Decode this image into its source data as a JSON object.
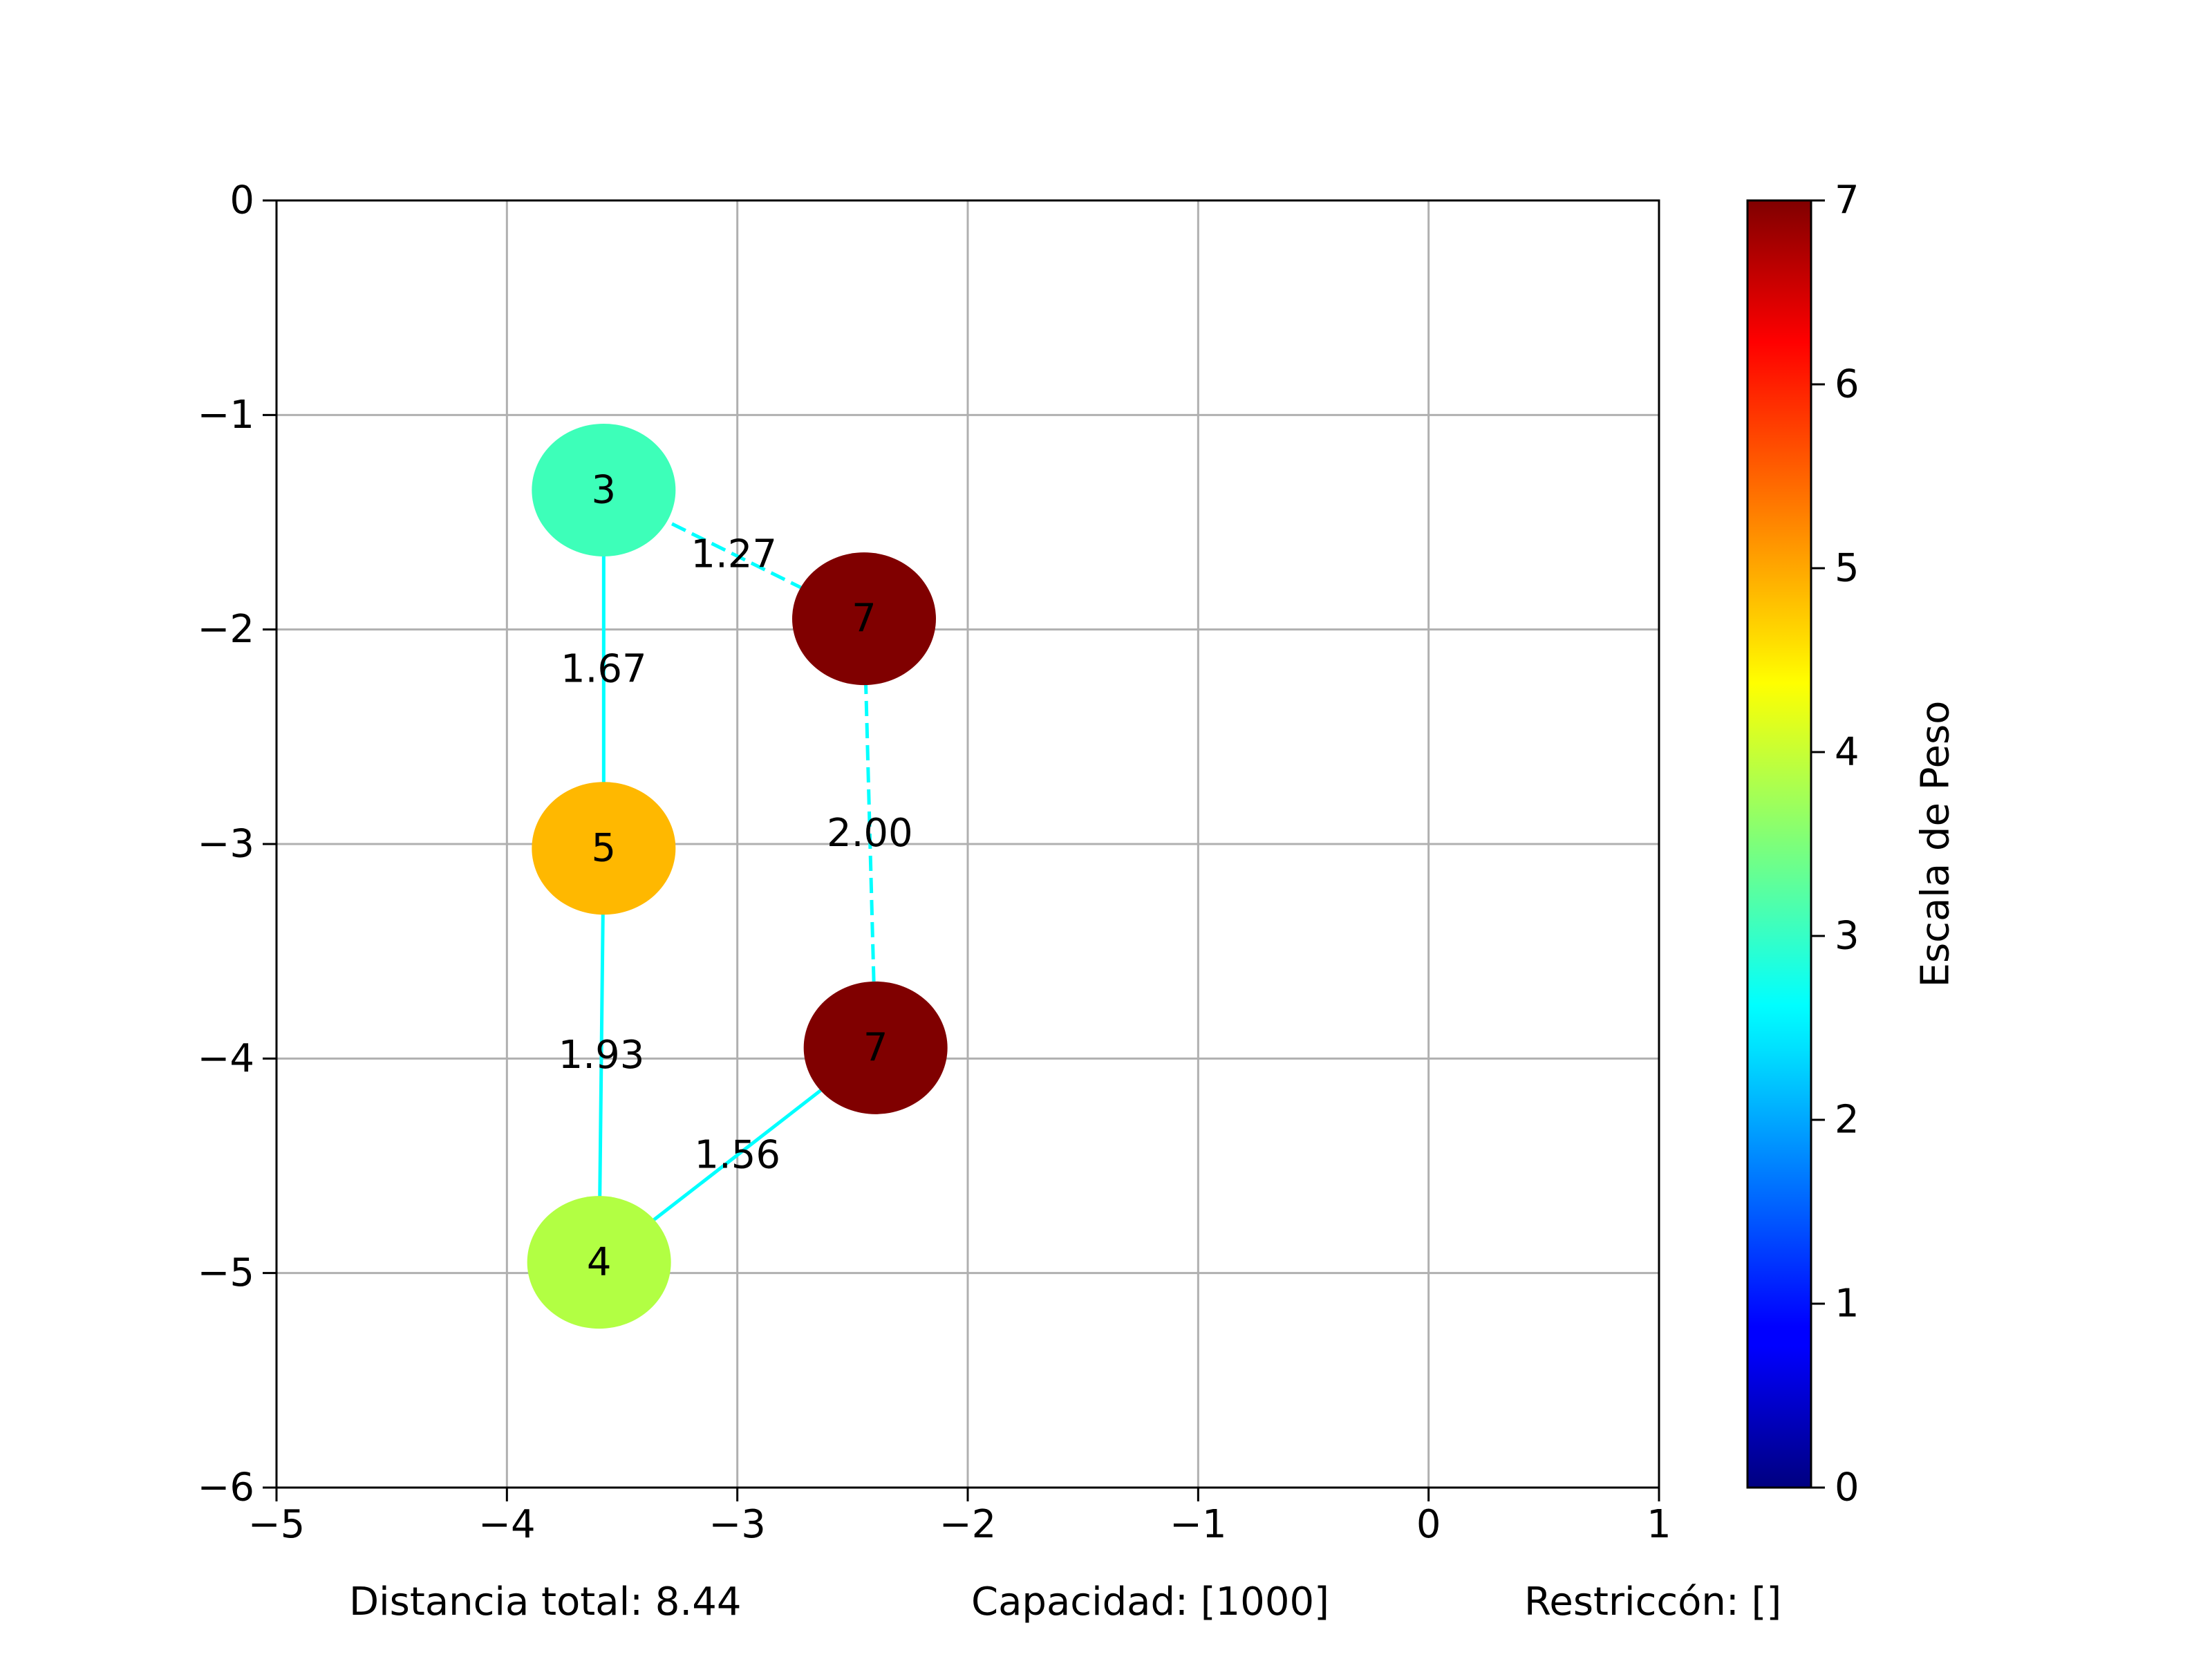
{
  "chart_data": {
    "type": "scatter",
    "title": "",
    "xlabel": "",
    "ylabel": "",
    "xlim": [
      -5,
      1
    ],
    "ylim": [
      -6,
      0
    ],
    "grid": true,
    "xticks": [
      -5,
      -4,
      -3,
      -2,
      -1,
      0,
      1
    ],
    "yticks": [
      0,
      -1,
      -2,
      -3,
      -4,
      -5,
      -6
    ],
    "xtick_labels": [
      "−5",
      "−4",
      "−3",
      "−2",
      "−1",
      "0",
      "1"
    ],
    "ytick_labels": [
      "0",
      "−1",
      "−2",
      "−3",
      "−4",
      "−5",
      "−6"
    ],
    "nodes": [
      {
        "x": -3.58,
        "y": -1.35,
        "weight": 3,
        "label": "3",
        "color": "#3dffb9"
      },
      {
        "x": -2.45,
        "y": -1.95,
        "weight": 7,
        "label": "7",
        "color": "#800000"
      },
      {
        "x": -3.58,
        "y": -3.02,
        "weight": 5,
        "label": "5",
        "color": "#ffb800"
      },
      {
        "x": -2.4,
        "y": -3.95,
        "weight": 7,
        "label": "7",
        "color": "#800000"
      },
      {
        "x": -3.6,
        "y": -4.95,
        "weight": 4,
        "label": "4",
        "color": "#b2ff43"
      }
    ],
    "edges": [
      {
        "from": 1,
        "to": 0,
        "distance": "1.27",
        "style": "dashed"
      },
      {
        "from": 0,
        "to": 2,
        "distance": "1.67",
        "style": "solid"
      },
      {
        "from": 2,
        "to": 4,
        "distance": "1.93",
        "style": "solid"
      },
      {
        "from": 4,
        "to": 3,
        "distance": "1.56",
        "style": "solid"
      },
      {
        "from": 3,
        "to": 1,
        "distance": "2.00",
        "style": "dashed"
      }
    ],
    "edge_color": "#00ffff",
    "colorbar": {
      "label": "Escala de Peso",
      "min": 0,
      "max": 7,
      "ticks": [
        "0",
        "1",
        "2",
        "3",
        "4",
        "5",
        "6",
        "7"
      ],
      "colormap": "jet"
    },
    "footer": {
      "distance": "Distancia total: 8.44",
      "capacity": "Capacidad: [1000]",
      "restriction": "Restriccón: []"
    }
  }
}
